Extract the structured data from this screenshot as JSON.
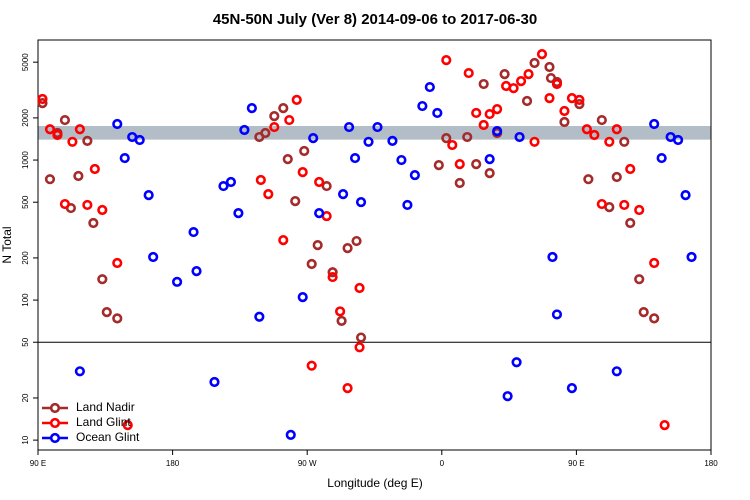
{
  "chart_data": {
    "type": "scatter",
    "title": "45N-50N July (Ver 8)   2014-09-06 to 2017-06-30",
    "xlabel": "Longitude (deg E)",
    "ylabel": "N Total",
    "log_y": true,
    "legend": "bottom-left",
    "xlim": [
      90,
      540
    ],
    "xticks": [
      {
        "value": 90,
        "label": "90 E"
      },
      {
        "value": 180,
        "label": "180"
      },
      {
        "value": 270,
        "label": "90 W"
      },
      {
        "value": 360,
        "label": "0"
      },
      {
        "value": 450,
        "label": "90 E"
      },
      {
        "value": 540,
        "label": "180"
      }
    ],
    "ylim": [
      8.5,
      7200
    ],
    "yticks": [
      10,
      20,
      50,
      100,
      200,
      500,
      1000,
      2000,
      5000
    ],
    "hline": 50,
    "band": [
      1400,
      1750
    ],
    "band_colors": [
      "#f9d36a",
      "#a0b8de"
    ],
    "series": [
      {
        "name": "Land Nadir",
        "color": "#a52a2a",
        "x": [
          93,
          98,
          103,
          108,
          112,
          117,
          123,
          127,
          133,
          136,
          143,
          238,
          242,
          248,
          254,
          257,
          262,
          268,
          273,
          277,
          283,
          287,
          293,
          297,
          303,
          306,
          358,
          363,
          372,
          377,
          383,
          388,
          392,
          397,
          402,
          417,
          422,
          432,
          433,
          437,
          442,
          452,
          458,
          467,
          472,
          477,
          482,
          486,
          492,
          495,
          502
        ],
        "values": [
          2550,
          730,
          1560,
          1930,
          454,
          769,
          1370,
          355,
          141,
          82,
          74,
          1460,
          1560,
          2060,
          2350,
          1016,
          509,
          1160,
          181,
          247,
          652,
          158,
          71,
          235,
          264,
          54,
          920,
          1435,
          686,
          1460,
          935,
          3490,
          807,
          1560,
          4110,
          2640,
          4930,
          4620,
          3850,
          3610,
          1870,
          2510,
          730,
          1930,
          461,
          757,
          1350,
          355,
          141,
          82,
          74
        ]
      },
      {
        "name": "Land Glint",
        "color": "#ff0000",
        "x": [
          93,
          98,
          103,
          108,
          113,
          118,
          123,
          128,
          133,
          143,
          150,
          239,
          244,
          248,
          254,
          258,
          263,
          267,
          273,
          278,
          283,
          287,
          292,
          297,
          305,
          305,
          363,
          367,
          372,
          378,
          383,
          388,
          392,
          397,
          403,
          408,
          413,
          418,
          422,
          427,
          432,
          437,
          442,
          447,
          452,
          457,
          462,
          467,
          472,
          477,
          482,
          486,
          492,
          502,
          509
        ],
        "values": [
          2730,
          1660,
          1510,
          485,
          1350,
          1660,
          478,
          863,
          440,
          184,
          12.8,
          720,
          571,
          1720,
          268,
          1930,
          2690,
          820,
          34,
          697,
          398,
          146,
          83,
          23.5,
          46,
          122,
          5170,
          1280,
          935,
          4180,
          2170,
          1780,
          2130,
          2310,
          3380,
          3260,
          3660,
          4110,
          1350,
          5710,
          2770,
          3490,
          2240,
          2770,
          2690,
          1660,
          1510,
          485,
          1350,
          1660,
          478,
          863,
          440,
          184,
          12.8
        ]
      },
      {
        "name": "Ocean Glint",
        "color": "#0000ff",
        "x": [
          118,
          143,
          148,
          153,
          158,
          164,
          167,
          183,
          194,
          196,
          208,
          214,
          219,
          224,
          228,
          233,
          238,
          259,
          267,
          274,
          278,
          294,
          298,
          302,
          306,
          311,
          317,
          327,
          333,
          337,
          342,
          347,
          352,
          357,
          392,
          397,
          404,
          410,
          412,
          434,
          437,
          447,
          477,
          502,
          507,
          513,
          518,
          523,
          527
        ],
        "values": [
          31,
          1810,
          1033,
          1460,
          1390,
          562,
          203,
          135,
          306,
          161,
          26,
          652,
          697,
          418,
          1640,
          2350,
          76,
          10.9,
          105,
          1435,
          418,
          571,
          1720,
          1033,
          501,
          1350,
          1720,
          1370,
          1000,
          478,
          781,
          2430,
          3320,
          2170,
          1016,
          1610,
          20.6,
          36,
          1460,
          203,
          79,
          23.5,
          31,
          1810,
          1033,
          1460,
          1390,
          562,
          203
        ]
      }
    ]
  }
}
